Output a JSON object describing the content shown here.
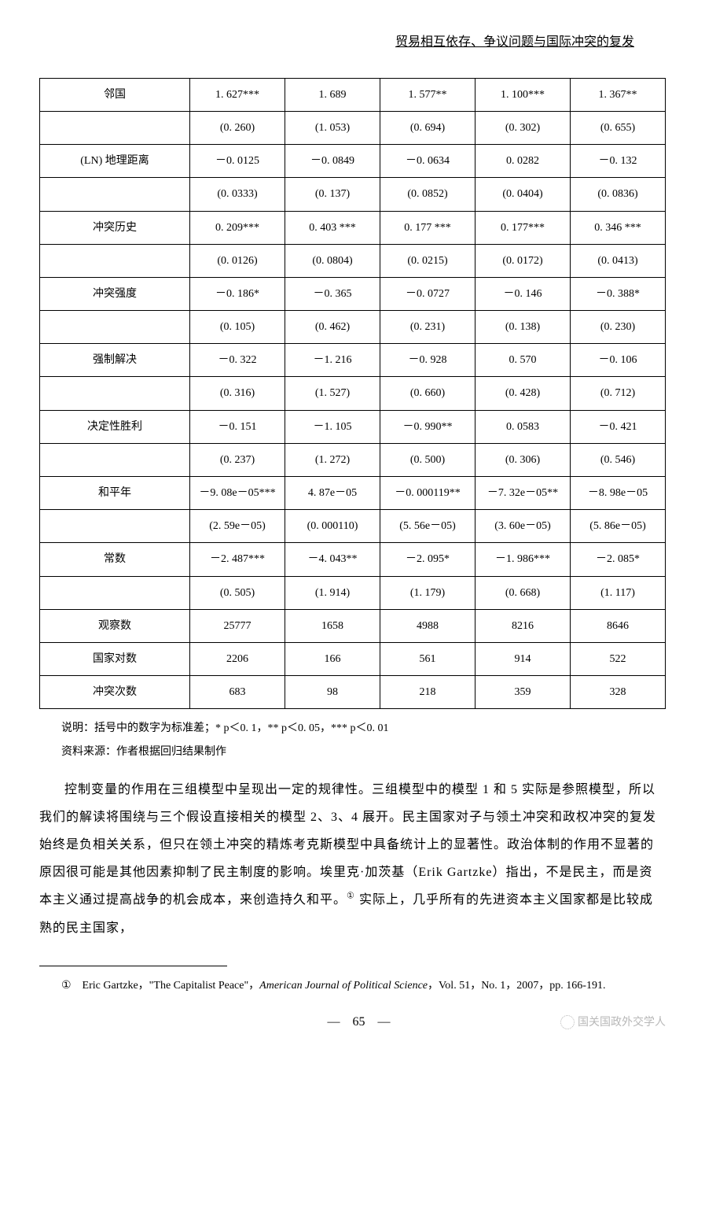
{
  "header": "贸易相互依存、争议问题与国际冲突的复发",
  "table": {
    "rows": [
      {
        "label": "邻国",
        "c1": "1. 627***",
        "c2": "1. 689",
        "c3": "1. 577**",
        "c4": "1. 100***",
        "c5": "1. 367**"
      },
      {
        "label": "",
        "c1": "(0. 260)",
        "c2": "(1. 053)",
        "c3": "(0. 694)",
        "c4": "(0. 302)",
        "c5": "(0. 655)"
      },
      {
        "label": "(LN) 地理距离",
        "c1": "－0. 0125",
        "c2": "－0. 0849",
        "c3": "－0. 0634",
        "c4": "0. 0282",
        "c5": "－0. 132"
      },
      {
        "label": "",
        "c1": "(0. 0333)",
        "c2": "(0. 137)",
        "c3": "(0. 0852)",
        "c4": "(0. 0404)",
        "c5": "(0. 0836)"
      },
      {
        "label": "冲突历史",
        "c1": "0. 209***",
        "c2": "0. 403 ***",
        "c3": "0. 177 ***",
        "c4": "0. 177***",
        "c5": "0. 346 ***"
      },
      {
        "label": "",
        "c1": "(0. 0126)",
        "c2": "(0. 0804)",
        "c3": "(0. 0215)",
        "c4": "(0. 0172)",
        "c5": "(0. 0413)"
      },
      {
        "label": "冲突强度",
        "c1": "－0. 186*",
        "c2": "－0. 365",
        "c3": "－0. 0727",
        "c4": "－0. 146",
        "c5": "－0. 388*"
      },
      {
        "label": "",
        "c1": "(0. 105)",
        "c2": "(0. 462)",
        "c3": "(0. 231)",
        "c4": "(0. 138)",
        "c5": "(0. 230)"
      },
      {
        "label": "强制解决",
        "c1": "－0. 322",
        "c2": "－1. 216",
        "c3": "－0. 928",
        "c4": "0. 570",
        "c5": "－0. 106"
      },
      {
        "label": "",
        "c1": "(0. 316)",
        "c2": "(1. 527)",
        "c3": "(0. 660)",
        "c4": "(0. 428)",
        "c5": "(0. 712)"
      },
      {
        "label": "决定性胜利",
        "c1": "－0. 151",
        "c2": "－1. 105",
        "c3": "－0. 990**",
        "c4": "0. 0583",
        "c5": "－0. 421"
      },
      {
        "label": "",
        "c1": "(0. 237)",
        "c2": "(1. 272)",
        "c3": "(0. 500)",
        "c4": "(0. 306)",
        "c5": "(0. 546)"
      },
      {
        "label": "和平年",
        "c1": "－9. 08e－05***",
        "c2": "4. 87e－05",
        "c3": "－0. 000119**",
        "c4": "－7. 32e－05**",
        "c5": "－8. 98e－05"
      },
      {
        "label": "",
        "c1": "(2. 59e－05)",
        "c2": "(0. 000110)",
        "c3": "(5. 56e－05)",
        "c4": "(3. 60e－05)",
        "c5": "(5. 86e－05)"
      },
      {
        "label": "常数",
        "c1": "－2. 487***",
        "c2": "－4. 043**",
        "c3": "－2. 095*",
        "c4": "－1. 986***",
        "c5": "－2. 085*"
      },
      {
        "label": "",
        "c1": "(0. 505)",
        "c2": "(1. 914)",
        "c3": "(1. 179)",
        "c4": "(0. 668)",
        "c5": "(1. 117)"
      },
      {
        "label": "观察数",
        "c1": "25777",
        "c2": "1658",
        "c3": "4988",
        "c4": "8216",
        "c5": "8646"
      },
      {
        "label": "国家对数",
        "c1": "2206",
        "c2": "166",
        "c3": "561",
        "c4": "914",
        "c5": "522"
      },
      {
        "label": "冲突次数",
        "c1": "683",
        "c2": "98",
        "c3": "218",
        "c4": "359",
        "c5": "328"
      }
    ]
  },
  "note1": "说明：括号中的数字为标准差；* p＜0. 1，** p＜0. 05，*** p＜0. 01",
  "note2": "资料来源：作者根据回归结果制作",
  "body": "控制变量的作用在三组模型中呈现出一定的规律性。三组模型中的模型 1 和 5 实际是参照模型，所以我们的解读将围绕与三个假设直接相关的模型 2、3、4 展开。民主国家对子与领土冲突和政权冲突的复发始终是负相关关系，但只在领土冲突的精炼考克斯模型中具备统计上的显著性。政治体制的作用不显著的原因很可能是其他因素抑制了民主制度的影响。埃里克·加茨基（Erik Gartzke）指出，不是民主，而是资本主义通过提高战争的机会成本，来创造持久和平。",
  "body_tail": " 实际上，几乎所有的先进资本主义国家都是比较成熟的民主国家，",
  "footnote_marker": "①",
  "footnote_pre": "①　Eric Gartzke，\"The Capitalist Peace\"，",
  "footnote_italic": "American Journal of Political Science",
  "footnote_post": "，Vol. 51，No. 1，2007，pp. 166-191.",
  "page_number": "—　65　—",
  "watermark": "国关国政外交学人"
}
